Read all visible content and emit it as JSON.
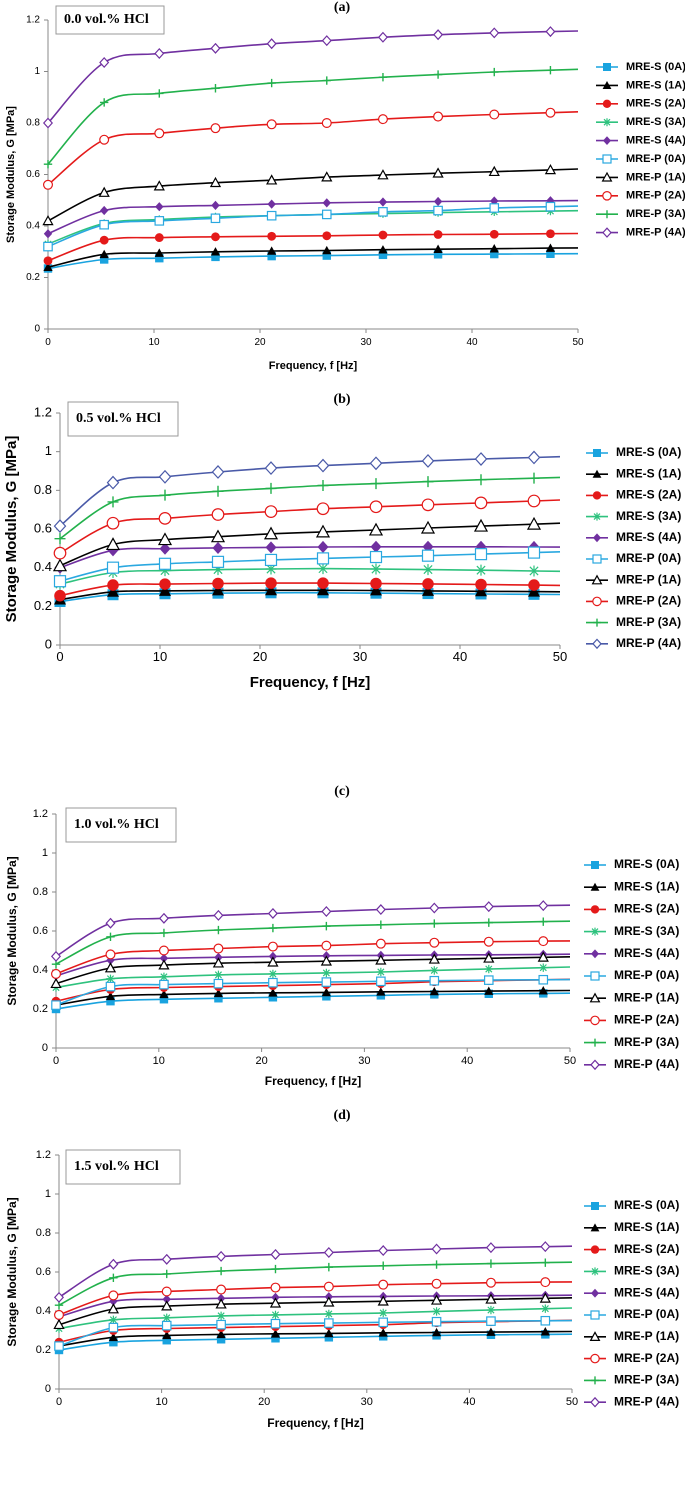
{
  "chart_data": [
    {
      "type": "line",
      "label": "(a)",
      "title": "0.0 vol.% HCl",
      "xlabel": "Frequency, f [Hz]",
      "ylabel": "Storage Modulus, G [MPa]",
      "xlim": [
        0,
        50
      ],
      "ylim": [
        0,
        1.2
      ],
      "xticks": [
        "0",
        "10",
        "20",
        "30",
        "40",
        "50"
      ],
      "yticks": [
        "0",
        "0.2",
        "0.4",
        "0.6",
        "0.8",
        "1",
        "1.2"
      ],
      "x": [
        0,
        5.3,
        10.5,
        15.8,
        21.1,
        26.3,
        31.6,
        36.8,
        42.1,
        47.4
      ],
      "series": [
        {
          "name": "MRE-S (0A)",
          "color": "#19a3df",
          "marker": "square-filled",
          "values": [
            0.235,
            0.27,
            0.275,
            0.28,
            0.283,
            0.285,
            0.288,
            0.29,
            0.291,
            0.292
          ]
        },
        {
          "name": "MRE-S (1A)",
          "color": "#000000",
          "marker": "triangle-filled",
          "values": [
            0.24,
            0.29,
            0.295,
            0.3,
            0.303,
            0.305,
            0.308,
            0.31,
            0.312,
            0.314
          ]
        },
        {
          "name": "MRE-S (2A)",
          "color": "#e41a1a",
          "marker": "circle-filled",
          "values": [
            0.265,
            0.345,
            0.355,
            0.358,
            0.36,
            0.362,
            0.365,
            0.367,
            0.368,
            0.37
          ]
        },
        {
          "name": "MRE-S (3A)",
          "color": "#2ec27e",
          "marker": "asterisk",
          "values": [
            0.33,
            0.41,
            0.425,
            0.435,
            0.44,
            0.445,
            0.448,
            0.452,
            0.455,
            0.458
          ]
        },
        {
          "name": "MRE-S (4A)",
          "color": "#7030a0",
          "marker": "diamond-filled",
          "values": [
            0.37,
            0.46,
            0.475,
            0.48,
            0.485,
            0.49,
            0.493,
            0.495,
            0.497,
            0.498
          ]
        },
        {
          "name": "MRE-P (0A)",
          "color": "#2aa8e0",
          "marker": "square-open",
          "values": [
            0.32,
            0.405,
            0.42,
            0.43,
            0.44,
            0.445,
            0.455,
            0.46,
            0.47,
            0.475
          ]
        },
        {
          "name": "MRE-P (1A)",
          "color": "#000000",
          "marker": "triangle-open",
          "values": [
            0.42,
            0.53,
            0.555,
            0.568,
            0.578,
            0.59,
            0.598,
            0.605,
            0.611,
            0.618
          ]
        },
        {
          "name": "MRE-P (2A)",
          "color": "#e41a1a",
          "marker": "circle-open",
          "values": [
            0.56,
            0.735,
            0.76,
            0.78,
            0.795,
            0.8,
            0.815,
            0.825,
            0.833,
            0.84
          ]
        },
        {
          "name": "MRE-P (3A)",
          "color": "#22b14c",
          "marker": "plus",
          "values": [
            0.64,
            0.88,
            0.915,
            0.935,
            0.955,
            0.965,
            0.978,
            0.988,
            0.998,
            1.005
          ]
        },
        {
          "name": "MRE-P (4A)",
          "color": "#7030a0",
          "marker": "diamond-open",
          "values": [
            0.8,
            1.035,
            1.07,
            1.09,
            1.108,
            1.12,
            1.133,
            1.143,
            1.15,
            1.155
          ]
        }
      ]
    },
    {
      "type": "line",
      "label": "(b)",
      "title": "0.5 vol.% HCl",
      "xlabel": "Frequency, f [Hz]",
      "ylabel": "Storage Modulus, G [MPa]",
      "xlim": [
        0,
        50
      ],
      "ylim": [
        0,
        1.2
      ],
      "xticks": [
        "0",
        "10",
        "20",
        "30",
        "40",
        "50"
      ],
      "yticks": [
        "0",
        "0.2",
        "0.4",
        "0.6",
        "0.8",
        "1",
        "1.2"
      ],
      "x": [
        0,
        5.3,
        10.5,
        15.8,
        21.1,
        26.3,
        31.6,
        36.8,
        42.1,
        47.4
      ],
      "series": [
        {
          "name": "MRE-S (0A)",
          "color": "#19a3df",
          "marker": "square-filled",
          "values": [
            0.225,
            0.26,
            0.265,
            0.268,
            0.27,
            0.27,
            0.268,
            0.266,
            0.264,
            0.262
          ]
        },
        {
          "name": "MRE-S (1A)",
          "color": "#000000",
          "marker": "triangle-filled",
          "values": [
            0.235,
            0.275,
            0.28,
            0.282,
            0.283,
            0.283,
            0.282,
            0.28,
            0.278,
            0.276
          ]
        },
        {
          "name": "MRE-S (2A)",
          "color": "#e41a1a",
          "marker": "circle-filled",
          "values": [
            0.255,
            0.31,
            0.315,
            0.318,
            0.32,
            0.32,
            0.318,
            0.316,
            0.313,
            0.31
          ]
        },
        {
          "name": "MRE-S (3A)",
          "color": "#2ec27e",
          "marker": "asterisk",
          "values": [
            0.315,
            0.375,
            0.385,
            0.39,
            0.393,
            0.395,
            0.393,
            0.39,
            0.387,
            0.383
          ]
        },
        {
          "name": "MRE-S (4A)",
          "color": "#7030a0",
          "marker": "diamond-filled",
          "values": [
            0.4,
            0.49,
            0.498,
            0.502,
            0.505,
            0.507,
            0.508,
            0.508,
            0.508,
            0.507
          ]
        },
        {
          "name": "MRE-P (0A)",
          "color": "#2aa8e0",
          "marker": "square-open",
          "values": [
            0.33,
            0.4,
            0.42,
            0.43,
            0.44,
            0.448,
            0.455,
            0.462,
            0.47,
            0.478
          ]
        },
        {
          "name": "MRE-P (1A)",
          "color": "#000000",
          "marker": "triangle-open",
          "values": [
            0.41,
            0.52,
            0.545,
            0.56,
            0.575,
            0.585,
            0.595,
            0.605,
            0.615,
            0.625
          ]
        },
        {
          "name": "MRE-P (2A)",
          "color": "#e41a1a",
          "marker": "circle-open",
          "values": [
            0.475,
            0.63,
            0.655,
            0.675,
            0.69,
            0.705,
            0.715,
            0.725,
            0.735,
            0.745
          ]
        },
        {
          "name": "MRE-P (3A)",
          "color": "#22b14c",
          "marker": "plus",
          "values": [
            0.55,
            0.74,
            0.775,
            0.795,
            0.81,
            0.825,
            0.835,
            0.845,
            0.855,
            0.863
          ]
        },
        {
          "name": "MRE-P (4A)",
          "color": "#4a5aa8",
          "marker": "diamond-open",
          "values": [
            0.615,
            0.84,
            0.87,
            0.895,
            0.915,
            0.928,
            0.94,
            0.952,
            0.962,
            0.97
          ]
        }
      ]
    },
    {
      "type": "line",
      "label": "(c)",
      "title": "1.0 vol.% HCl",
      "xlabel": "Frequency, f [Hz]",
      "ylabel": "Storage Modulus, G [MPa]",
      "xlim": [
        0,
        50
      ],
      "ylim": [
        0,
        1.2
      ],
      "xticks": [
        "0",
        "10",
        "20",
        "30",
        "40",
        "50"
      ],
      "yticks": [
        "0",
        "0.2",
        "0.4",
        "0.6",
        "0.8",
        "1",
        "1.2"
      ],
      "x": [
        0,
        5.3,
        10.5,
        15.8,
        21.1,
        26.3,
        31.6,
        36.8,
        42.1,
        47.4
      ],
      "series": [
        {
          "name": "MRE-S (0A)",
          "color": "#19a3df",
          "marker": "square-filled",
          "values": [
            0.2,
            0.24,
            0.25,
            0.255,
            0.26,
            0.265,
            0.27,
            0.275,
            0.278,
            0.28
          ]
        },
        {
          "name": "MRE-S (1A)",
          "color": "#000000",
          "marker": "triangle-filled",
          "values": [
            0.22,
            0.265,
            0.275,
            0.28,
            0.283,
            0.285,
            0.288,
            0.29,
            0.292,
            0.294
          ]
        },
        {
          "name": "MRE-S (2A)",
          "color": "#e41a1a",
          "marker": "circle-filled",
          "values": [
            0.24,
            0.3,
            0.31,
            0.315,
            0.32,
            0.325,
            0.33,
            0.34,
            0.345,
            0.35
          ]
        },
        {
          "name": "MRE-S (3A)",
          "color": "#2ec27e",
          "marker": "asterisk",
          "values": [
            0.31,
            0.355,
            0.365,
            0.375,
            0.38,
            0.385,
            0.39,
            0.398,
            0.405,
            0.412
          ]
        },
        {
          "name": "MRE-S (4A)",
          "color": "#7030a0",
          "marker": "diamond-filled",
          "values": [
            0.37,
            0.45,
            0.46,
            0.465,
            0.47,
            0.473,
            0.475,
            0.477,
            0.478,
            0.48
          ]
        },
        {
          "name": "MRE-P (0A)",
          "color": "#2aa8e0",
          "marker": "square-open",
          "values": [
            0.22,
            0.315,
            0.325,
            0.33,
            0.335,
            0.338,
            0.342,
            0.345,
            0.348,
            0.35
          ]
        },
        {
          "name": "MRE-P (1A)",
          "color": "#000000",
          "marker": "triangle-open",
          "values": [
            0.33,
            0.41,
            0.425,
            0.435,
            0.44,
            0.445,
            0.45,
            0.455,
            0.46,
            0.465
          ]
        },
        {
          "name": "MRE-P (2A)",
          "color": "#e41a1a",
          "marker": "circle-open",
          "values": [
            0.38,
            0.48,
            0.5,
            0.51,
            0.52,
            0.525,
            0.535,
            0.54,
            0.545,
            0.548
          ]
        },
        {
          "name": "MRE-P (3A)",
          "color": "#22b14c",
          "marker": "plus",
          "values": [
            0.43,
            0.57,
            0.59,
            0.605,
            0.615,
            0.625,
            0.632,
            0.638,
            0.643,
            0.648
          ]
        },
        {
          "name": "MRE-P (4A)",
          "color": "#7030a0",
          "marker": "diamond-open",
          "values": [
            0.47,
            0.64,
            0.665,
            0.68,
            0.69,
            0.7,
            0.71,
            0.718,
            0.725,
            0.73
          ]
        }
      ]
    },
    {
      "type": "line",
      "label": "(d)",
      "title": "1.5 vol.% HCl",
      "xlabel": "Frequency, f [Hz]",
      "ylabel": "Storage Modulus, G [MPa]",
      "xlim": [
        0,
        50
      ],
      "ylim": [
        0,
        1.2
      ],
      "xticks": [
        "0",
        "10",
        "20",
        "30",
        "40",
        "50"
      ],
      "yticks": [
        "0",
        "0.2",
        "0.4",
        "0.6",
        "0.8",
        "1",
        "1.2"
      ],
      "x": [
        0,
        5.3,
        10.5,
        15.8,
        21.1,
        26.3,
        31.6,
        36.8,
        42.1,
        47.4
      ],
      "series": [
        {
          "name": "MRE-S (0A)",
          "color": "#19a3df",
          "marker": "square-filled",
          "values": [
            0.2,
            0.24,
            0.25,
            0.255,
            0.26,
            0.265,
            0.27,
            0.275,
            0.278,
            0.28
          ]
        },
        {
          "name": "MRE-S (1A)",
          "color": "#000000",
          "marker": "triangle-filled",
          "values": [
            0.22,
            0.265,
            0.275,
            0.28,
            0.283,
            0.285,
            0.288,
            0.29,
            0.292,
            0.294
          ]
        },
        {
          "name": "MRE-S (2A)",
          "color": "#e41a1a",
          "marker": "circle-filled",
          "values": [
            0.24,
            0.3,
            0.31,
            0.315,
            0.32,
            0.325,
            0.33,
            0.34,
            0.345,
            0.35
          ]
        },
        {
          "name": "MRE-S (3A)",
          "color": "#2ec27e",
          "marker": "asterisk",
          "values": [
            0.31,
            0.355,
            0.365,
            0.375,
            0.38,
            0.385,
            0.39,
            0.398,
            0.405,
            0.412
          ]
        },
        {
          "name": "MRE-S (4A)",
          "color": "#7030a0",
          "marker": "diamond-filled",
          "values": [
            0.37,
            0.45,
            0.46,
            0.465,
            0.47,
            0.473,
            0.475,
            0.477,
            0.478,
            0.48
          ]
        },
        {
          "name": "MRE-P (0A)",
          "color": "#2aa8e0",
          "marker": "square-open",
          "values": [
            0.22,
            0.315,
            0.325,
            0.33,
            0.335,
            0.338,
            0.342,
            0.345,
            0.348,
            0.35
          ]
        },
        {
          "name": "MRE-P (1A)",
          "color": "#000000",
          "marker": "triangle-open",
          "values": [
            0.33,
            0.41,
            0.425,
            0.435,
            0.44,
            0.445,
            0.45,
            0.455,
            0.46,
            0.465
          ]
        },
        {
          "name": "MRE-P (2A)",
          "color": "#e41a1a",
          "marker": "circle-open",
          "values": [
            0.38,
            0.48,
            0.5,
            0.51,
            0.52,
            0.525,
            0.535,
            0.54,
            0.545,
            0.548
          ]
        },
        {
          "name": "MRE-P (3A)",
          "color": "#22b14c",
          "marker": "plus",
          "values": [
            0.43,
            0.57,
            0.59,
            0.605,
            0.615,
            0.625,
            0.632,
            0.638,
            0.643,
            0.648
          ]
        },
        {
          "name": "MRE-P (4A)",
          "color": "#7030a0",
          "marker": "diamond-open",
          "values": [
            0.47,
            0.64,
            0.665,
            0.68,
            0.69,
            0.7,
            0.71,
            0.718,
            0.725,
            0.73
          ]
        }
      ]
    }
  ]
}
